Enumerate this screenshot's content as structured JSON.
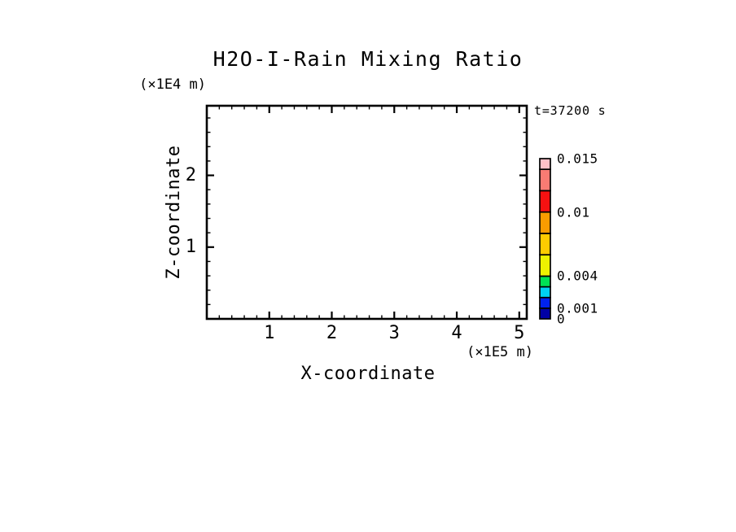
{
  "chart_data": {
    "type": "heatmap",
    "title": "H2O-I-Rain Mixing Ratio",
    "xlabel": "X-coordinate",
    "ylabel": "Z-coordinate",
    "x_unit": "(×1E5 m)",
    "y_unit": "(×1E4 m)",
    "time_label": "t=37200 s",
    "xlim": [
      0,
      5.12
    ],
    "ylim": [
      0,
      2.97
    ],
    "minor_tick_step": 0.2,
    "grid": false,
    "plot_area_empty": true,
    "x_major_ticks": [
      {
        "value": 1,
        "label": "1"
      },
      {
        "value": 2,
        "label": "2"
      },
      {
        "value": 3,
        "label": "3"
      },
      {
        "value": 4,
        "label": "4"
      },
      {
        "value": 5,
        "label": "5"
      }
    ],
    "y_major_ticks": [
      {
        "value": 1,
        "label": "1"
      },
      {
        "value": 2,
        "label": "2"
      }
    ],
    "colorbar": {
      "vmin": 0,
      "vmax": 0.015,
      "levels": [
        0,
        0.001,
        0.002,
        0.003,
        0.004,
        0.006,
        0.008,
        0.01,
        0.012,
        0.014,
        0.015
      ],
      "colors": [
        "#0000a5",
        "#0022ee",
        "#00d2f2",
        "#00e155",
        "#eef200",
        "#fecb00",
        "#f99c00",
        "#f61111",
        "#f97b73",
        "#ffc0c8"
      ],
      "labels": [
        {
          "value": 0.015,
          "label": "0.015"
        },
        {
          "value": 0.01,
          "label": "0.01"
        },
        {
          "value": 0.004,
          "label": "0.004"
        },
        {
          "value": 0.001,
          "label": "0.001"
        },
        {
          "value": 0,
          "label": "0"
        }
      ]
    },
    "axis_color": "#000000",
    "background_color": "#ffffff"
  }
}
